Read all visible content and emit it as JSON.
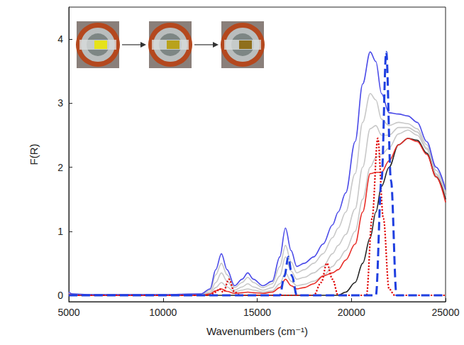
{
  "chart_data": {
    "type": "line",
    "x_label": "Wavenumbers (cm⁻¹)",
    "y_label": "F(R)",
    "xlim": [
      5000,
      25000
    ],
    "xticks": [
      5000,
      10000,
      15000,
      20000,
      25000
    ],
    "ylim": [
      -0.1,
      4.5
    ],
    "yticks": [
      0,
      1,
      2,
      3,
      4
    ],
    "grid": false,
    "series": [
      {
        "color": "#c8c8c8",
        "line_style": "solid",
        "x": [
          5000,
          5200,
          6000,
          10000,
          12000,
          12500,
          12800,
          13100,
          13400,
          13800,
          14200,
          14500,
          14800,
          15300,
          15800,
          16200,
          16500,
          16800,
          17100,
          17500,
          18000,
          18500,
          19000,
          19300,
          19700,
          20200,
          20600,
          21000,
          21300,
          21600,
          22000,
          22500,
          23000,
          23500,
          24000,
          24500,
          25000
        ],
        "values": [
          0.02,
          0.01,
          0,
          0,
          0.01,
          0.03,
          0.12,
          0.2,
          0.13,
          0.05,
          0.08,
          0.1,
          0.08,
          0.05,
          0.07,
          0.18,
          0.35,
          0.22,
          0.15,
          0.17,
          0.22,
          0.3,
          0.45,
          0.55,
          0.7,
          1.0,
          1.5,
          2.0,
          2.15,
          2.2,
          2.3,
          2.52,
          2.58,
          2.5,
          2.28,
          1.88,
          1.52
        ]
      },
      {
        "color": "#c8c8c8",
        "line_style": "solid",
        "x": [
          5000,
          5200,
          6000,
          10000,
          12000,
          12500,
          12800,
          13100,
          13400,
          13800,
          14200,
          14500,
          14800,
          15300,
          15800,
          16200,
          16500,
          16800,
          17100,
          17500,
          18000,
          18500,
          19000,
          19300,
          19700,
          20200,
          20600,
          21000,
          21300,
          21600,
          22000,
          22500,
          23000,
          23500,
          24000,
          24500,
          25000
        ],
        "values": [
          0.03,
          0.01,
          0.01,
          0.01,
          0.01,
          0.05,
          0.2,
          0.35,
          0.22,
          0.08,
          0.13,
          0.18,
          0.13,
          0.08,
          0.12,
          0.3,
          0.6,
          0.38,
          0.25,
          0.28,
          0.35,
          0.45,
          0.65,
          0.78,
          0.95,
          1.35,
          2.0,
          2.6,
          2.65,
          2.5,
          2.5,
          2.62,
          2.62,
          2.55,
          2.3,
          1.9,
          1.55
        ]
      },
      {
        "color": "#c8c8c8",
        "line_style": "solid",
        "x": [
          5000,
          5200,
          6000,
          10000,
          12000,
          12500,
          12800,
          13100,
          13400,
          13800,
          14200,
          14500,
          14800,
          15300,
          15800,
          16200,
          16500,
          16800,
          17100,
          17500,
          18000,
          18500,
          19000,
          19300,
          19700,
          20200,
          20600,
          21000,
          21300,
          21600,
          22000,
          22500,
          23000,
          23500,
          24000,
          24500,
          25000
        ],
        "values": [
          0.04,
          0.02,
          0.01,
          0.01,
          0.02,
          0.08,
          0.32,
          0.5,
          0.32,
          0.12,
          0.2,
          0.28,
          0.2,
          0.12,
          0.18,
          0.45,
          0.78,
          0.52,
          0.35,
          0.4,
          0.5,
          0.65,
          0.9,
          1.05,
          1.3,
          1.9,
          2.7,
          3.15,
          3.05,
          2.75,
          2.65,
          2.7,
          2.68,
          2.6,
          2.35,
          1.95,
          1.6
        ]
      },
      {
        "color": "#222222",
        "line_style": "solid",
        "x": [
          5000,
          5200,
          6000,
          10000,
          12000,
          12500,
          12800,
          13100,
          13400,
          13800,
          14200,
          14500,
          14800,
          15300,
          15800,
          16200,
          16500,
          16800,
          17100,
          17500,
          18000,
          18500,
          19000,
          19300,
          19700,
          20200,
          20600,
          21000,
          21300,
          21600,
          22000,
          22500,
          23000,
          23500,
          24000,
          24500,
          25000
        ],
        "values": [
          0,
          0,
          0,
          0,
          0,
          0,
          0,
          0,
          0,
          0,
          0,
          0,
          0,
          0,
          0,
          0,
          0,
          0,
          0,
          0,
          0,
          0,
          0,
          0,
          0.05,
          0.2,
          0.5,
          0.9,
          1.3,
          1.7,
          2.0,
          2.35,
          2.45,
          2.42,
          2.22,
          1.85,
          1.5
        ]
      },
      {
        "color": "#e8302a",
        "line_style": "solid",
        "x": [
          5000,
          5200,
          6000,
          10000,
          12000,
          12500,
          12800,
          13100,
          13400,
          13800,
          14200,
          14500,
          14800,
          15300,
          15800,
          16200,
          16500,
          16800,
          17100,
          17500,
          18000,
          18500,
          19000,
          19300,
          19700,
          20200,
          20600,
          21000,
          21300,
          21600,
          22000,
          22500,
          23000,
          23500,
          24000,
          24500,
          25000
        ],
        "values": [
          0.02,
          0.01,
          0,
          0,
          0,
          0.02,
          0.07,
          0.1,
          0.06,
          0.03,
          0.04,
          0.05,
          0.04,
          0.03,
          0.05,
          0.12,
          0.25,
          0.15,
          0.1,
          0.12,
          0.18,
          0.3,
          0.35,
          0.4,
          0.55,
          0.8,
          1.3,
          1.9,
          1.92,
          1.92,
          2.1,
          2.35,
          2.45,
          2.4,
          2.2,
          1.85,
          1.45
        ]
      },
      {
        "color": "#4a4ae8",
        "line_style": "solid",
        "x": [
          5000,
          5200,
          6000,
          10000,
          12000,
          12500,
          12800,
          13100,
          13400,
          13800,
          14200,
          14500,
          14800,
          15300,
          15800,
          16200,
          16500,
          16800,
          17100,
          17500,
          18000,
          18500,
          19000,
          19300,
          19700,
          20200,
          20600,
          21000,
          21300,
          21600,
          22000,
          22500,
          23000,
          23500,
          24000,
          24500,
          25000
        ],
        "values": [
          0.05,
          0.02,
          0.01,
          0.01,
          0.02,
          0.1,
          0.4,
          0.65,
          0.4,
          0.15,
          0.25,
          0.35,
          0.25,
          0.15,
          0.22,
          0.6,
          1.05,
          0.7,
          0.45,
          0.5,
          0.6,
          0.8,
          1.1,
          1.3,
          1.6,
          2.4,
          3.3,
          3.8,
          3.65,
          3.15,
          2.85,
          2.83,
          2.8,
          2.7,
          2.4,
          2.0,
          1.65
        ]
      },
      {
        "color": "#e00000",
        "line_style": "dotted",
        "x": [
          5000,
          12000,
          12500,
          12800,
          13000,
          13200,
          13500,
          13800,
          14100,
          18000,
          18400,
          18700,
          19000,
          19300,
          20800,
          21100,
          21400,
          21700,
          22000,
          22300,
          25000
        ],
        "values": [
          0,
          0,
          0,
          0.05,
          0.1,
          0.05,
          0.25,
          0.05,
          0,
          0,
          0.2,
          0.5,
          0.25,
          0,
          0,
          1.2,
          2.45,
          1.2,
          0.1,
          0,
          0
        ]
      },
      {
        "color": "#1f3fe0",
        "line_style": "dashed",
        "x": [
          5000,
          15000,
          16200,
          16450,
          16650,
          16850,
          17100,
          20800,
          21300,
          21600,
          21850,
          22100,
          22400,
          25000
        ],
        "values": [
          0,
          0,
          0,
          0.3,
          0.6,
          0.3,
          0,
          0,
          0,
          1.8,
          3.8,
          1.8,
          0,
          0
        ]
      }
    ]
  }
}
